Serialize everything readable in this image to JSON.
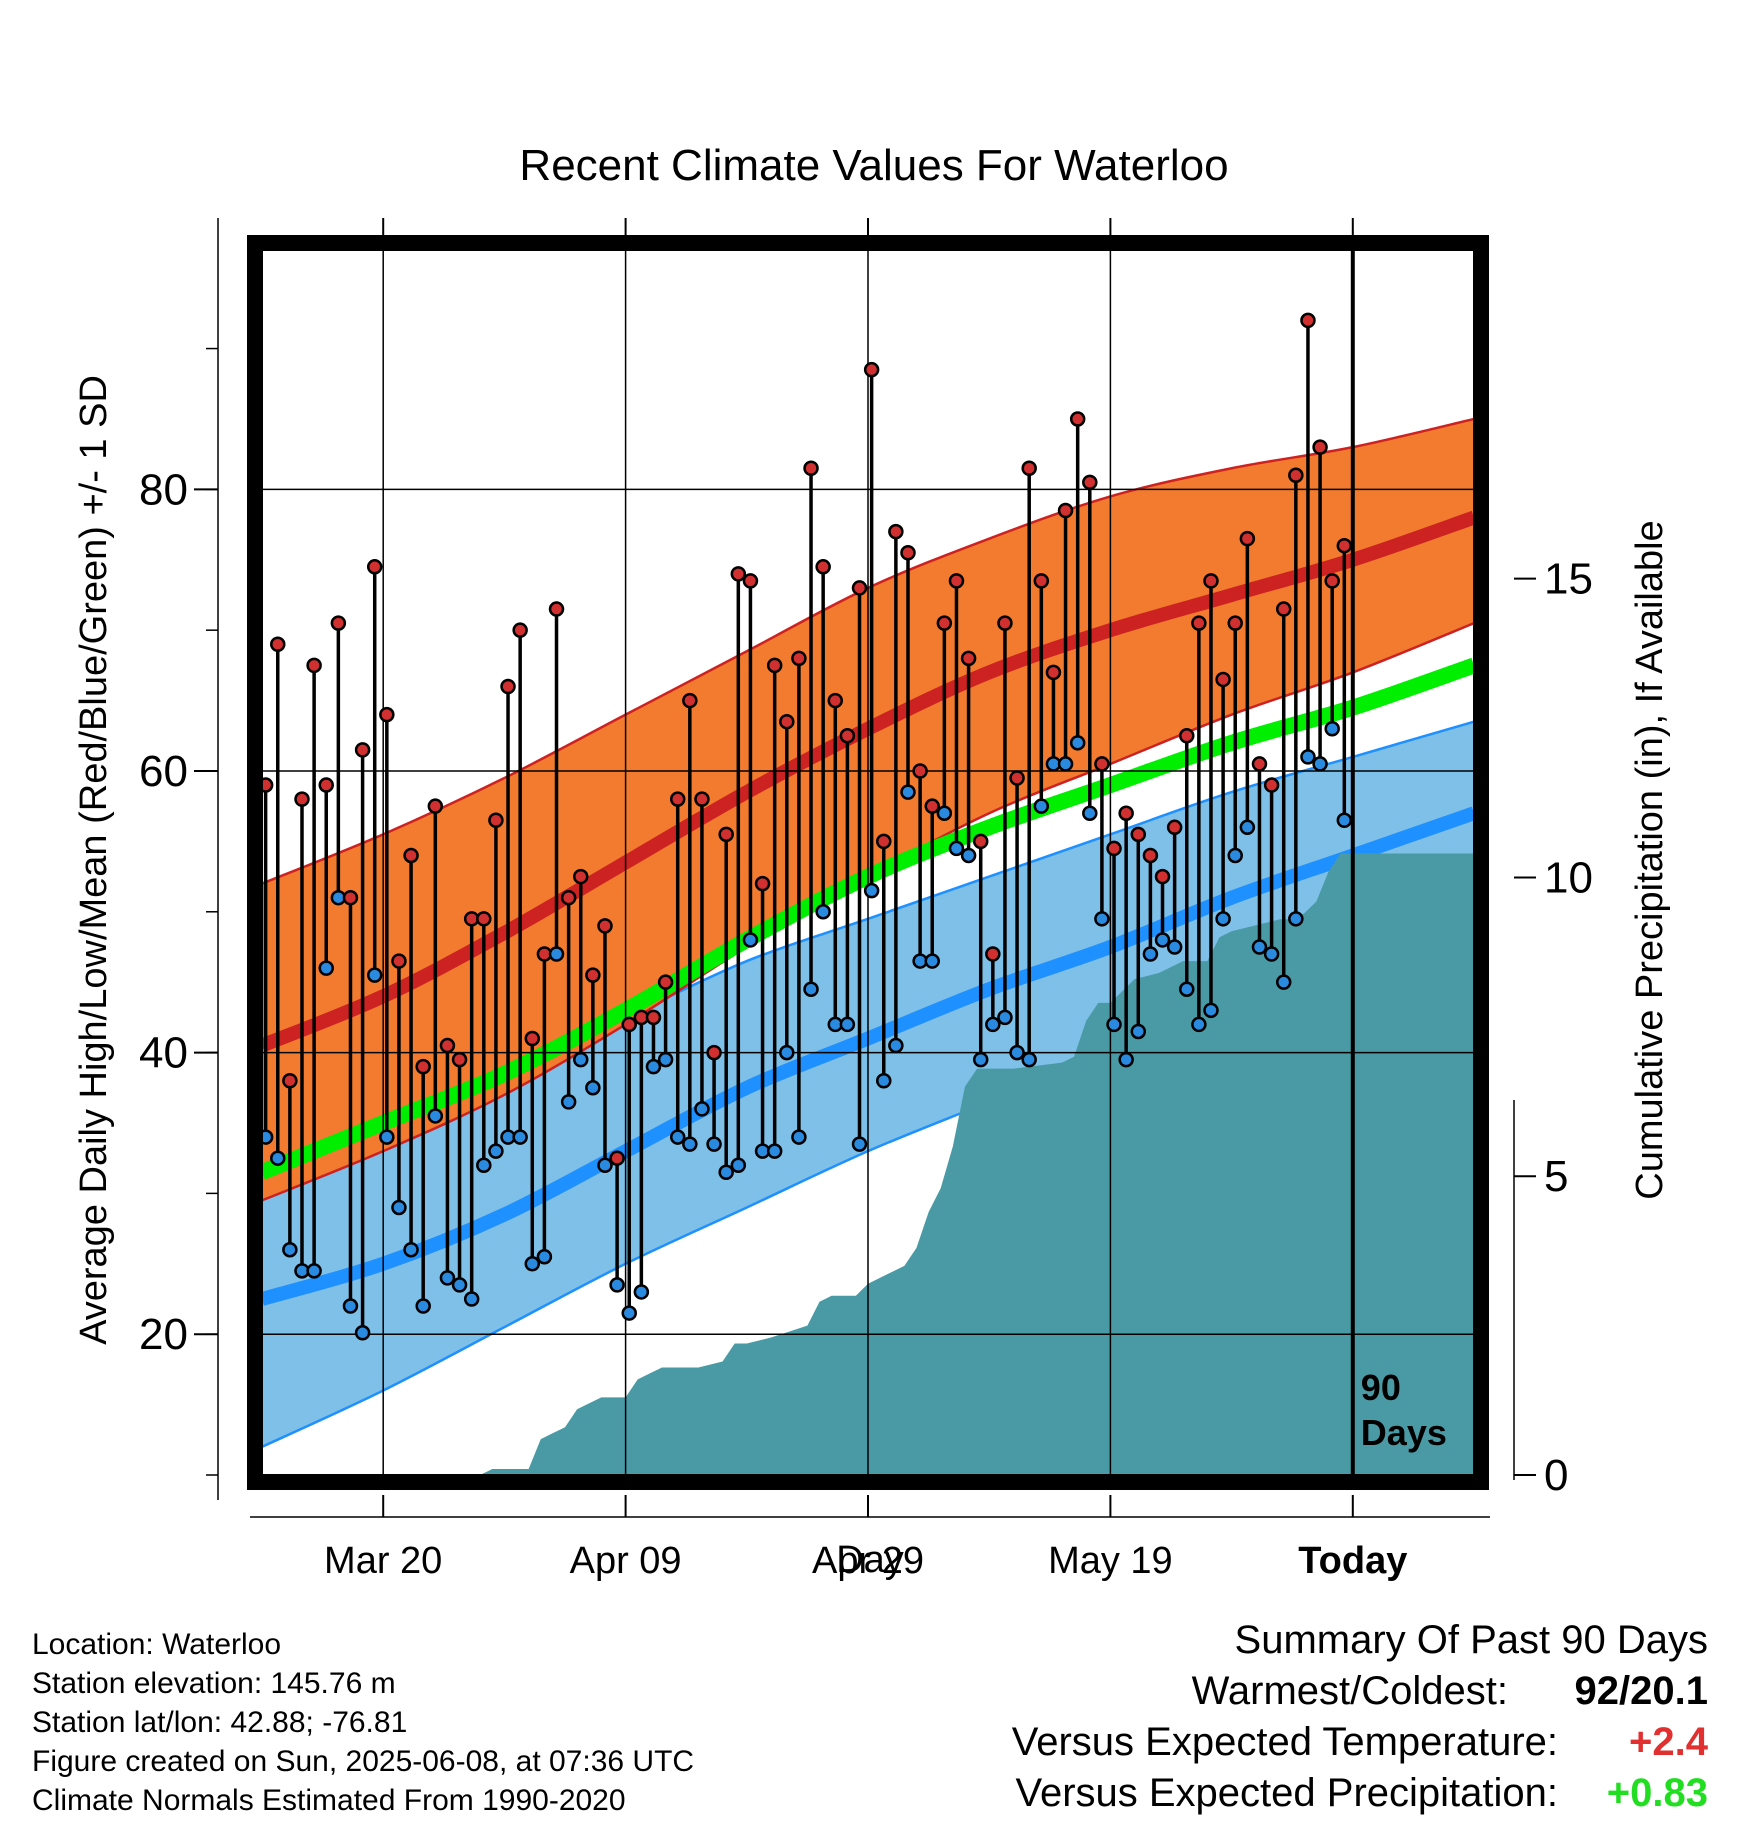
{
  "chart_data": {
    "type": "line",
    "title": "Recent Climate Values For Waterloo",
    "xlabel": "Day",
    "ylabel": "Average Daily High/Low/Mean (Red/Blue/Green) +/- 1 SD",
    "y2label": "Cumulative Precipitation (in), If Available",
    "ylim": [
      10,
      97
    ],
    "y2lim": [
      0,
      20.5
    ],
    "y_ticks": [
      "20",
      "40",
      "60",
      "80"
    ],
    "y2_ticks": [
      "0",
      "5",
      "10",
      "15"
    ],
    "x_ticks": [
      {
        "day": 10,
        "label": "Mar 20"
      },
      {
        "day": 30,
        "label": "Apr 09"
      },
      {
        "day": 50,
        "label": "Apr 29"
      },
      {
        "day": 70,
        "label": "May 19"
      },
      {
        "day": 90,
        "label": "Today"
      }
    ],
    "x_range": [
      0,
      100
    ],
    "today_label": [
      "90",
      "Days"
    ],
    "normals": {
      "x": [
        0,
        10,
        20,
        30,
        40,
        50,
        60,
        70,
        80,
        90,
        100
      ],
      "high_mean": [
        40.5,
        44.0,
        48.5,
        53.5,
        58.5,
        63.0,
        67.0,
        70.0,
        72.5,
        75.0,
        78.0
      ],
      "high_upper": [
        52.0,
        55.5,
        59.5,
        64.0,
        68.5,
        73.0,
        76.5,
        79.5,
        81.5,
        83.0,
        85.0
      ],
      "high_lower": [
        29.5,
        33.0,
        37.0,
        42.0,
        47.5,
        52.5,
        57.0,
        60.5,
        64.0,
        67.0,
        70.5
      ],
      "low_mean": [
        22.5,
        25.0,
        28.5,
        33.0,
        37.5,
        41.0,
        44.5,
        47.5,
        51.0,
        54.0,
        57.0
      ],
      "low_upper": [
        33.5,
        35.5,
        38.5,
        42.5,
        46.5,
        49.5,
        52.5,
        55.5,
        58.5,
        61.0,
        63.5
      ],
      "low_lower": [
        12.0,
        16.0,
        20.5,
        25.0,
        29.0,
        33.0,
        36.5,
        40.0,
        43.5,
        47.0,
        50.5
      ],
      "mean": [
        31.5,
        35.0,
        38.5,
        43.0,
        48.0,
        52.5,
        56.0,
        59.0,
        62.0,
        64.5,
        67.5
      ],
      "colors": {
        "high": "#cc2222",
        "high_band": "#f27b30",
        "low": "#1e90ff",
        "low_band": "#7ec0e8",
        "mean": "#00ee00"
      }
    },
    "series": [
      {
        "name": "High",
        "color": "#d03030",
        "values": [
          59,
          69,
          38,
          58,
          67.5,
          59,
          70.5,
          51,
          61.5,
          74.5,
          64,
          46.5,
          54,
          39,
          57.5,
          40.5,
          39.5,
          49.5,
          49.5,
          56.5,
          66,
          70,
          41,
          47,
          71.5,
          51,
          52.5,
          45.5,
          49,
          32.5,
          42,
          42.5,
          42.5,
          45,
          58,
          65,
          58,
          40,
          55.5,
          74,
          73.5,
          52,
          67.5,
          63.5,
          68,
          81.5,
          74.5,
          65,
          62.5,
          73,
          88.5,
          55,
          77,
          75.5,
          60,
          57.5,
          70.5,
          73.5,
          68,
          55,
          47,
          70.5,
          59.5,
          81.5,
          73.5,
          67,
          78.5,
          85,
          80.5,
          60.5,
          54.5,
          57,
          55.5,
          54,
          52.5,
          56,
          62.5,
          70.5,
          73.5,
          66.5,
          70.5,
          76.5,
          60.5,
          59,
          71.5,
          81,
          92,
          83,
          73.5,
          76
        ]
      },
      {
        "name": "Low",
        "color": "#2a8ae0",
        "values": [
          34,
          32.5,
          26,
          24.5,
          24.5,
          46,
          51,
          22,
          20.1,
          45.5,
          34,
          29,
          26,
          22,
          35.5,
          24,
          23.5,
          22.5,
          32,
          33,
          34,
          34,
          25,
          25.5,
          47,
          36.5,
          39.5,
          37.5,
          32,
          23.5,
          21.5,
          23,
          39,
          39.5,
          34,
          33.5,
          36,
          33.5,
          31.5,
          32,
          48,
          33,
          33,
          40,
          34,
          44.5,
          50,
          42,
          42,
          33.5,
          51.5,
          38,
          40.5,
          58.5,
          46.5,
          46.5,
          57,
          54.5,
          54,
          39.5,
          42,
          42.5,
          40,
          39.5,
          57.5,
          60.5,
          60.5,
          62,
          57,
          49.5,
          42,
          39.5,
          41.5,
          47,
          48,
          47.5,
          44.5,
          42,
          43,
          49.5,
          54,
          56,
          47.5,
          47,
          45,
          49.5,
          61,
          60.5,
          63,
          56.5
        ]
      }
    ],
    "precipitation": {
      "color": "#4a9aa5",
      "x": [
        0,
        18,
        19,
        22,
        23,
        24,
        25,
        26,
        27,
        28,
        30,
        31,
        32,
        33,
        34,
        36,
        38,
        39,
        40,
        42,
        45,
        46,
        47,
        49,
        50,
        51,
        53,
        54,
        55,
        56,
        57,
        58,
        59,
        62,
        66,
        67,
        68,
        69,
        70,
        71,
        72,
        74,
        76,
        78,
        79,
        80,
        82,
        84,
        85,
        86,
        87,
        88,
        89,
        100
      ],
      "values": [
        0,
        0,
        0.1,
        0.1,
        0.6,
        0.7,
        0.8,
        1.1,
        1.2,
        1.3,
        1.3,
        1.6,
        1.7,
        1.8,
        1.8,
        1.8,
        1.9,
        2.2,
        2.2,
        2.3,
        2.5,
        2.9,
        3.0,
        3.0,
        3.2,
        3.3,
        3.5,
        3.8,
        4.4,
        4.8,
        5.5,
        6.5,
        6.8,
        6.8,
        6.9,
        7.0,
        7.6,
        7.9,
        7.9,
        8.1,
        8.3,
        8.4,
        8.6,
        8.6,
        9.0,
        9.1,
        9.2,
        9.3,
        9.3,
        9.4,
        9.6,
        10.1,
        10.4,
        10.4
      ]
    }
  },
  "footer": {
    "location": "Location: Waterloo",
    "elevation": "Station elevation: 145.76 m",
    "latlon": "Station lat/lon: 42.88; -76.81",
    "created": "Figure created on Sun, 2025-06-08, at 07:36 UTC",
    "normals": "Climate Normals Estimated From 1990-2020"
  },
  "summary": {
    "title": "Summary Of Past 90 Days",
    "warmest_label": "Warmest/Coldest:",
    "warmest_value": "92/20.1",
    "temp_label": "Versus Expected Temperature:",
    "temp_value": "+2.4",
    "temp_color": "#e03030",
    "precip_label": "Versus Expected Precipitation:",
    "precip_value": "+0.83",
    "precip_color": "#22dd22"
  }
}
